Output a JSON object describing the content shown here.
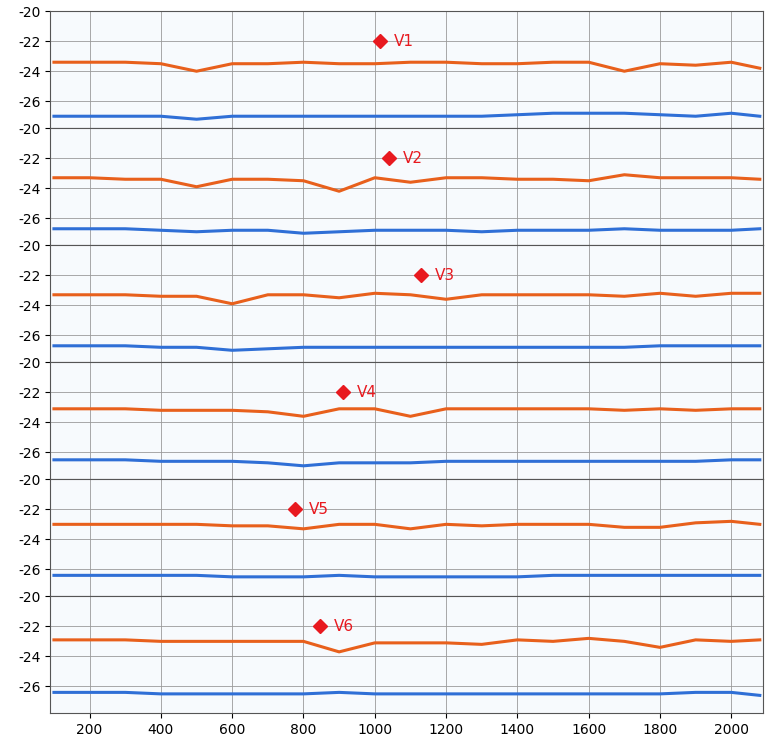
{
  "chart_data": [
    {
      "type": "line",
      "tick_labels": "y",
      "grid": true,
      "x": [
        100,
        200,
        300,
        400,
        500,
        600,
        700,
        800,
        900,
        1000,
        1100,
        1200,
        1300,
        1400,
        1500,
        1600,
        1700,
        1800,
        1900,
        2000,
        2080
      ],
      "series": [
        {
          "color": "#e8601c",
          "values": [
            -23.4,
            -23.4,
            -23.4,
            -23.5,
            -24.0,
            -23.5,
            -23.5,
            -23.4,
            -23.5,
            -23.5,
            -23.4,
            -23.4,
            -23.5,
            -23.5,
            -23.4,
            -23.4,
            -24.0,
            -23.5,
            -23.6,
            -23.4,
            -23.8
          ]
        },
        {
          "color": "#2f6fd6",
          "values": [
            -27.0,
            -27.0,
            -27.0,
            -27.0,
            -27.2,
            -27.0,
            -27.0,
            -27.0,
            -27.0,
            -27.0,
            -27.0,
            -27.0,
            -27.0,
            -26.9,
            -26.8,
            -26.8,
            -26.8,
            -26.9,
            -27.0,
            -26.8,
            -27.0
          ]
        }
      ],
      "annotations": [
        {
          "text": "V1",
          "x": 1015,
          "y": -22,
          "color": "#e8191f"
        }
      ],
      "xlim": [
        90,
        2090
      ],
      "ylim": [
        -27.8,
        -20
      ],
      "xticks": [
        200,
        400,
        600,
        800,
        1000,
        1200,
        1400,
        1600,
        1800,
        2000
      ],
      "yticks": [
        -26,
        -24,
        -22,
        -20
      ]
    },
    {
      "type": "line",
      "tick_labels": "y",
      "grid": true,
      "x": [
        100,
        200,
        300,
        400,
        500,
        600,
        700,
        800,
        900,
        1000,
        1100,
        1200,
        1300,
        1400,
        1500,
        1600,
        1700,
        1800,
        1900,
        2000,
        2080
      ],
      "series": [
        {
          "color": "#e8601c",
          "values": [
            -23.3,
            -23.3,
            -23.4,
            -23.4,
            -23.9,
            -23.4,
            -23.4,
            -23.5,
            -24.2,
            -23.3,
            -23.6,
            -23.3,
            -23.3,
            -23.4,
            -23.4,
            -23.5,
            -23.1,
            -23.3,
            -23.3,
            -23.3,
            -23.4
          ]
        },
        {
          "color": "#2f6fd6",
          "values": [
            -26.7,
            -26.7,
            -26.7,
            -26.8,
            -26.9,
            -26.8,
            -26.8,
            -27.0,
            -26.9,
            -26.8,
            -26.8,
            -26.8,
            -26.9,
            -26.8,
            -26.8,
            -26.8,
            -26.7,
            -26.8,
            -26.8,
            -26.8,
            -26.7
          ]
        }
      ],
      "annotations": [
        {
          "text": "V2",
          "x": 1040,
          "y": -22,
          "color": "#e8191f"
        }
      ],
      "xlim": [
        90,
        2090
      ],
      "ylim": [
        -27.8,
        -20
      ],
      "xticks": [
        200,
        400,
        600,
        800,
        1000,
        1200,
        1400,
        1600,
        1800,
        2000
      ],
      "yticks": [
        -26,
        -24,
        -22,
        -20
      ]
    },
    {
      "type": "line",
      "tick_labels": "y",
      "grid": true,
      "x": [
        100,
        200,
        300,
        400,
        500,
        600,
        700,
        800,
        900,
        1000,
        1100,
        1200,
        1300,
        1400,
        1500,
        1600,
        1700,
        1800,
        1900,
        2000,
        2080
      ],
      "series": [
        {
          "color": "#e8601c",
          "values": [
            -23.3,
            -23.3,
            -23.3,
            -23.4,
            -23.4,
            -23.9,
            -23.3,
            -23.3,
            -23.5,
            -23.2,
            -23.3,
            -23.6,
            -23.3,
            -23.3,
            -23.3,
            -23.3,
            -23.4,
            -23.2,
            -23.4,
            -23.2,
            -23.2
          ]
        },
        {
          "color": "#2f6fd6",
          "values": [
            -26.7,
            -26.7,
            -26.7,
            -26.8,
            -26.8,
            -27.0,
            -26.9,
            -26.8,
            -26.8,
            -26.8,
            -26.8,
            -26.8,
            -26.8,
            -26.8,
            -26.8,
            -26.8,
            -26.8,
            -26.7,
            -26.7,
            -26.7,
            -26.7
          ]
        }
      ],
      "annotations": [
        {
          "text": "V3",
          "x": 1130,
          "y": -22,
          "color": "#e8191f"
        }
      ],
      "xlim": [
        90,
        2090
      ],
      "ylim": [
        -27.8,
        -20
      ],
      "xticks": [
        200,
        400,
        600,
        800,
        1000,
        1200,
        1400,
        1600,
        1800,
        2000
      ],
      "yticks": [
        -26,
        -24,
        -22,
        -20
      ]
    },
    {
      "type": "line",
      "tick_labels": "y",
      "grid": true,
      "x": [
        100,
        200,
        300,
        400,
        500,
        600,
        700,
        800,
        900,
        1000,
        1100,
        1200,
        1300,
        1400,
        1500,
        1600,
        1700,
        1800,
        1900,
        2000,
        2080
      ],
      "series": [
        {
          "color": "#e8601c",
          "values": [
            -23.1,
            -23.1,
            -23.1,
            -23.2,
            -23.2,
            -23.2,
            -23.3,
            -23.6,
            -23.1,
            -23.1,
            -23.6,
            -23.1,
            -23.1,
            -23.1,
            -23.1,
            -23.1,
            -23.2,
            -23.1,
            -23.2,
            -23.1,
            -23.1
          ]
        },
        {
          "color": "#2f6fd6",
          "values": [
            -26.5,
            -26.5,
            -26.5,
            -26.6,
            -26.6,
            -26.6,
            -26.7,
            -26.9,
            -26.7,
            -26.7,
            -26.7,
            -26.6,
            -26.6,
            -26.6,
            -26.6,
            -26.6,
            -26.6,
            -26.6,
            -26.6,
            -26.5,
            -26.5
          ]
        }
      ],
      "annotations": [
        {
          "text": "V4",
          "x": 910,
          "y": -22,
          "color": "#e8191f"
        }
      ],
      "xlim": [
        90,
        2090
      ],
      "ylim": [
        -27.8,
        -20
      ],
      "xticks": [
        200,
        400,
        600,
        800,
        1000,
        1200,
        1400,
        1600,
        1800,
        2000
      ],
      "yticks": [
        -26,
        -24,
        -22,
        -20
      ]
    },
    {
      "type": "line",
      "tick_labels": "y",
      "grid": true,
      "x": [
        100,
        200,
        300,
        400,
        500,
        600,
        700,
        800,
        900,
        1000,
        1100,
        1200,
        1300,
        1400,
        1500,
        1600,
        1700,
        1800,
        1900,
        2000,
        2080
      ],
      "series": [
        {
          "color": "#e8601c",
          "values": [
            -23.0,
            -23.0,
            -23.0,
            -23.0,
            -23.0,
            -23.1,
            -23.1,
            -23.3,
            -23.0,
            -23.0,
            -23.3,
            -23.0,
            -23.1,
            -23.0,
            -23.0,
            -23.0,
            -23.2,
            -23.2,
            -22.9,
            -22.8,
            -23.0
          ]
        },
        {
          "color": "#2f6fd6",
          "values": [
            -26.4,
            -26.4,
            -26.4,
            -26.4,
            -26.4,
            -26.5,
            -26.5,
            -26.5,
            -26.4,
            -26.5,
            -26.5,
            -26.5,
            -26.5,
            -26.5,
            -26.4,
            -26.4,
            -26.4,
            -26.4,
            -26.4,
            -26.4,
            -26.4
          ]
        }
      ],
      "annotations": [
        {
          "text": "V5",
          "x": 775,
          "y": -22,
          "color": "#e8191f"
        }
      ],
      "xlim": [
        90,
        2090
      ],
      "ylim": [
        -27.8,
        -20
      ],
      "xticks": [
        200,
        400,
        600,
        800,
        1000,
        1200,
        1400,
        1600,
        1800,
        2000
      ],
      "yticks": [
        -26,
        -24,
        -22,
        -20
      ]
    },
    {
      "type": "line",
      "grid": true,
      "x": [
        100,
        200,
        300,
        400,
        500,
        600,
        700,
        800,
        900,
        1000,
        1100,
        1200,
        1300,
        1400,
        1500,
        1600,
        1700,
        1800,
        1900,
        2000,
        2080
      ],
      "series": [
        {
          "color": "#e8601c",
          "values": [
            -22.9,
            -22.9,
            -22.9,
            -23.0,
            -23.0,
            -23.0,
            -23.0,
            -23.0,
            -23.7,
            -23.1,
            -23.1,
            -23.1,
            -23.2,
            -22.9,
            -23.0,
            -22.8,
            -23.0,
            -23.4,
            -22.9,
            -23.0,
            -22.9
          ]
        },
        {
          "color": "#2f6fd6",
          "values": [
            -26.4,
            -26.4,
            -26.4,
            -26.5,
            -26.5,
            -26.5,
            -26.5,
            -26.5,
            -26.4,
            -26.5,
            -26.5,
            -26.5,
            -26.5,
            -26.5,
            -26.5,
            -26.5,
            -26.5,
            -26.5,
            -26.4,
            -26.4,
            -26.6
          ]
        }
      ],
      "annotations": [
        {
          "text": "V6",
          "x": 845,
          "y": -22,
          "color": "#e8191f"
        }
      ],
      "xlim": [
        90,
        2090
      ],
      "ylim": [
        -27.8,
        -20
      ],
      "xticks": [
        200,
        400,
        600,
        800,
        1000,
        1200,
        1400,
        1600,
        1800,
        2000
      ],
      "yticks": [
        -26,
        -24,
        -22,
        -20
      ]
    }
  ]
}
